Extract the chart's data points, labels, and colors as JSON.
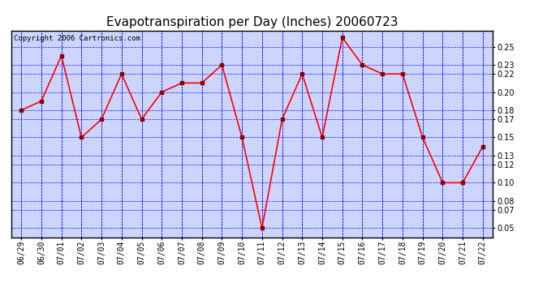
{
  "title": "Evapotranspiration per Day (Inches) 20060723",
  "copyright": "Copyright 2006 Cartronics.com",
  "x_labels": [
    "06/29",
    "06/30",
    "07/01",
    "07/02",
    "07/03",
    "07/04",
    "07/05",
    "07/06",
    "07/07",
    "07/08",
    "07/09",
    "07/10",
    "07/11",
    "07/12",
    "07/13",
    "07/14",
    "07/15",
    "07/16",
    "07/17",
    "07/18",
    "07/19",
    "07/20",
    "07/21",
    "07/22"
  ],
  "y_values": [
    0.18,
    0.19,
    0.24,
    0.15,
    0.17,
    0.22,
    0.17,
    0.2,
    0.21,
    0.21,
    0.23,
    0.15,
    0.05,
    0.17,
    0.22,
    0.15,
    0.26,
    0.23,
    0.22,
    0.22,
    0.15,
    0.1,
    0.1,
    0.14
  ],
  "yticks": [
    0.05,
    0.07,
    0.08,
    0.1,
    0.12,
    0.13,
    0.15,
    0.17,
    0.18,
    0.2,
    0.22,
    0.23,
    0.25
  ],
  "ymin": 0.04,
  "ymax": 0.268,
  "line_color": "red",
  "marker_color": "#880000",
  "bg_color": "#ccd5ff",
  "grid_color": "blue",
  "title_fontsize": 11,
  "tick_fontsize": 7,
  "copyright_fontsize": 6.5
}
